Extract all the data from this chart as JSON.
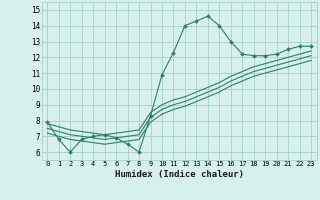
{
  "xlabel": "Humidex (Indice chaleur)",
  "x": [
    0,
    1,
    2,
    3,
    4,
    5,
    6,
    7,
    8,
    9,
    10,
    11,
    12,
    13,
    14,
    15,
    16,
    17,
    18,
    19,
    20,
    21,
    22,
    23
  ],
  "line_main": [
    7.9,
    6.8,
    6.0,
    6.8,
    7.0,
    7.1,
    6.9,
    6.5,
    6.0,
    8.3,
    10.9,
    12.3,
    14.0,
    14.3,
    14.6,
    14.0,
    13.0,
    12.2,
    12.1,
    12.1,
    12.2,
    12.5,
    12.7,
    12.7
  ],
  "line_trend1": [
    7.8,
    7.6,
    7.4,
    7.3,
    7.2,
    7.1,
    7.2,
    7.3,
    7.4,
    8.5,
    9.0,
    9.3,
    9.5,
    9.8,
    10.1,
    10.4,
    10.8,
    11.1,
    11.4,
    11.6,
    11.8,
    12.0,
    12.2,
    12.4
  ],
  "line_trend2": [
    7.5,
    7.3,
    7.1,
    7.0,
    6.9,
    6.8,
    6.9,
    7.0,
    7.1,
    8.2,
    8.7,
    9.0,
    9.2,
    9.5,
    9.8,
    10.1,
    10.5,
    10.8,
    11.1,
    11.3,
    11.5,
    11.7,
    11.9,
    12.1
  ],
  "line_trend3": [
    7.2,
    7.0,
    6.8,
    6.7,
    6.6,
    6.5,
    6.6,
    6.7,
    6.8,
    7.9,
    8.4,
    8.7,
    8.9,
    9.2,
    9.5,
    9.8,
    10.2,
    10.5,
    10.8,
    11.0,
    11.2,
    11.4,
    11.6,
    11.8
  ],
  "color": "#2e7d6e",
  "bg_color": "#d6f0eb",
  "grid_color": "#aed4cc",
  "ylim": [
    5.5,
    15.5
  ],
  "yticks": [
    6,
    7,
    8,
    9,
    10,
    11,
    12,
    13,
    14,
    15
  ],
  "xlim": [
    -0.5,
    23.5
  ]
}
